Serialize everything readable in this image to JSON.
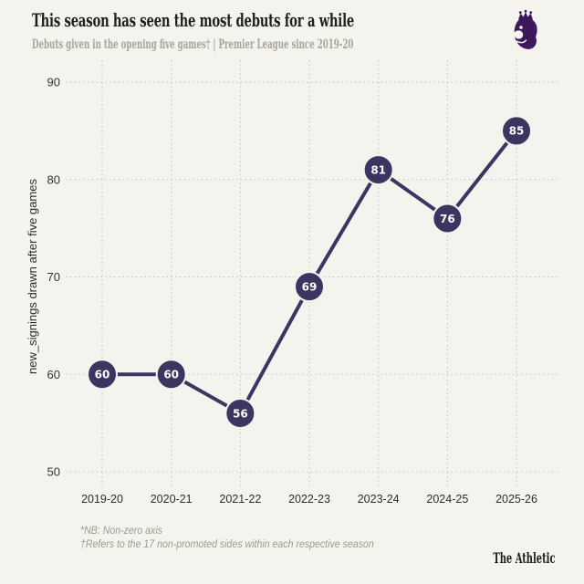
{
  "page": {
    "background": "#f4f3ed"
  },
  "header": {
    "title": "This season has seen the most debuts for a while",
    "subtitle": "Debuts given in the opening five games† | Premier League since 2019-20",
    "logo": "premier-league-lion-crest",
    "logo_color": "#3d195b"
  },
  "chart_data": {
    "type": "line",
    "title": "This season has seen the most debuts for a while",
    "subtitle": "Debuts given in the opening five games† | Premier League since 2019-20",
    "categories": [
      "2019-20",
      "2020-21",
      "2021-22",
      "2022-23",
      "2023-24",
      "2024-25",
      "2025-26"
    ],
    "values": [
      60,
      60,
      56,
      69,
      81,
      76,
      85
    ],
    "series": [
      {
        "name": "new_signings drawn after five games",
        "values": [
          60,
          60,
          56,
          69,
          81,
          76,
          85
        ]
      }
    ],
    "xlabel": "",
    "ylabel": "new_signings drawn after five games",
    "yticks": [
      50,
      60,
      70,
      80,
      90
    ],
    "ylim": [
      50,
      90
    ],
    "grid": "dotted-horizontal-and-vertical",
    "legend": "none",
    "point_labels_shown": true,
    "line_color": "#3a3561",
    "point_color": "#3a3561",
    "point_label_color": "#ffffff",
    "grid_color": "#c9c6ba"
  },
  "footnotes": [
    "*NB: Non-zero axis",
    "†Refers to the 17 non-promoted sides within each respective season"
  ],
  "branding": {
    "wordmark": "The Athletic"
  }
}
